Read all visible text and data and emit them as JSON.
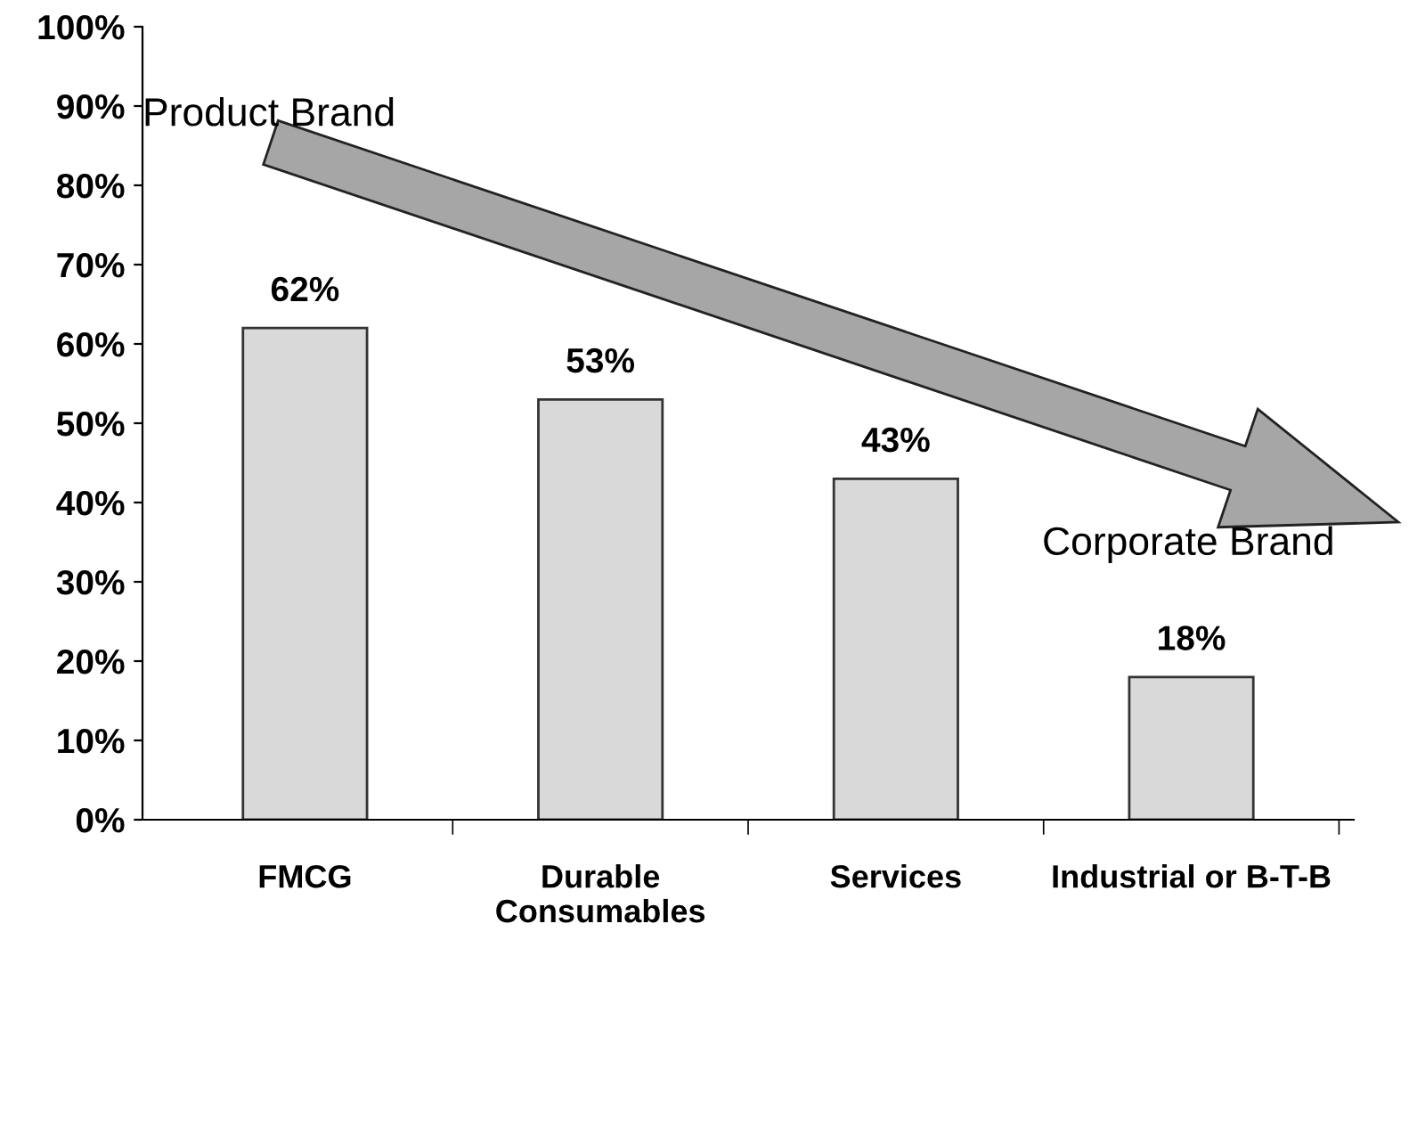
{
  "chart_data": {
    "type": "bar",
    "categories": [
      "FMCG",
      "Durable\nConsumables",
      "Services",
      "Industrial or B-T-B"
    ],
    "values": [
      62,
      53,
      43,
      18
    ],
    "value_labels": [
      "62%",
      "53%",
      "43%",
      "18%"
    ],
    "color": "#d9d9d9",
    "ylim": [
      0,
      100
    ],
    "yticks": [
      {
        "value": 0,
        "label": "0%"
      },
      {
        "value": 10,
        "label": "10%"
      },
      {
        "value": 20,
        "label": "20%"
      },
      {
        "value": 30,
        "label": "30%"
      },
      {
        "value": 40,
        "label": "40%"
      },
      {
        "value": 50,
        "label": "50%"
      },
      {
        "value": 60,
        "label": "60%"
      },
      {
        "value": 70,
        "label": "70%"
      },
      {
        "value": 80,
        "label": "80%"
      },
      {
        "value": 90,
        "label": "90%"
      },
      {
        "value": 100,
        "label": "100%"
      }
    ],
    "annotations": [
      "Product Brand",
      "Corporate Brand"
    ],
    "grid": false,
    "legend": false
  }
}
